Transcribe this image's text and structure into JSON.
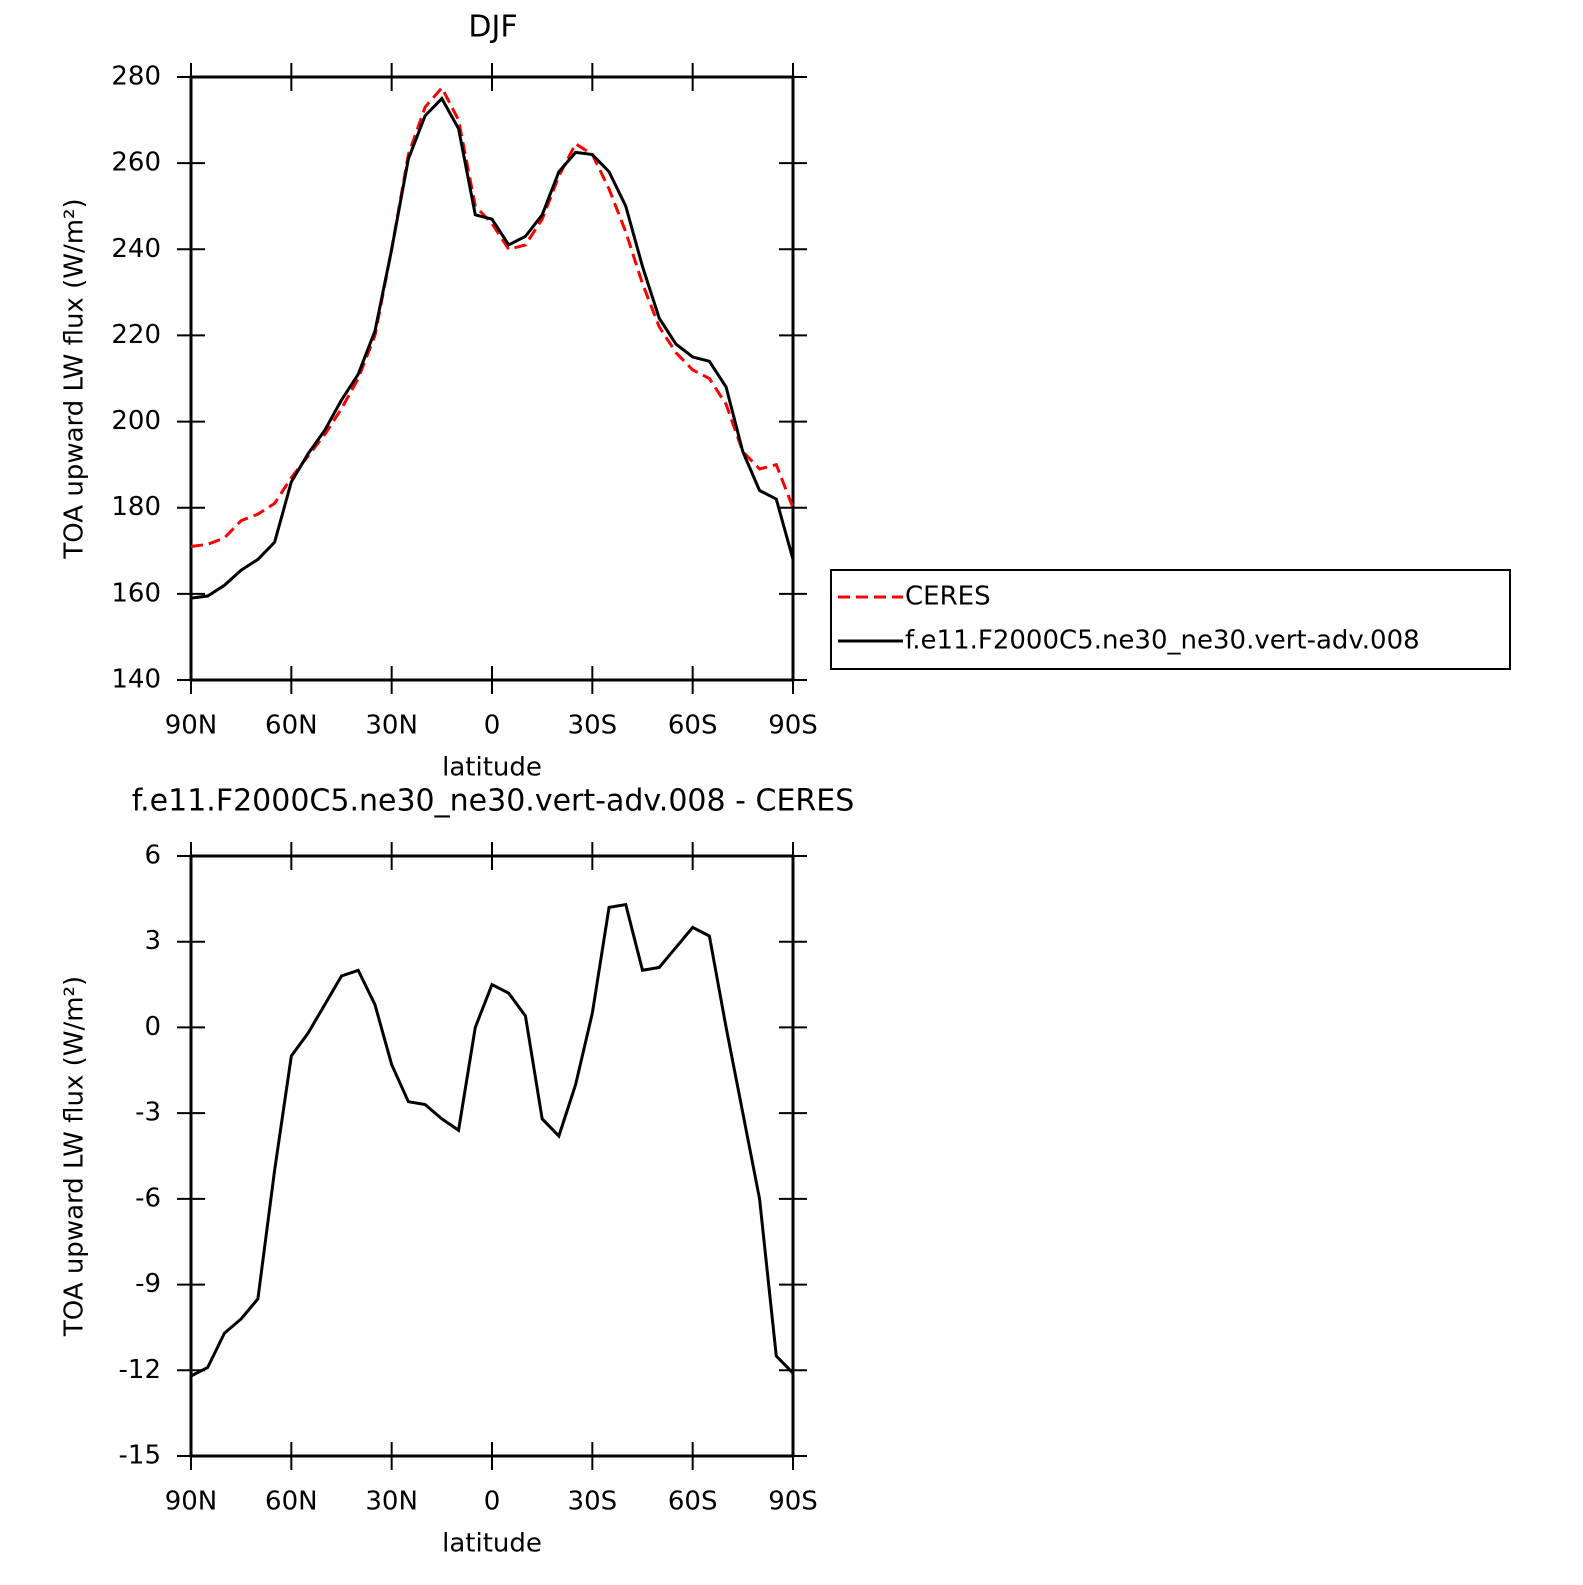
{
  "chart_data": [
    {
      "type": "line",
      "title": "DJF",
      "xlabel": "latitude",
      "ylabel": "TOA upward LW flux (W/m²)",
      "x": [
        90,
        85,
        80,
        75,
        70,
        65,
        60,
        55,
        50,
        45,
        40,
        35,
        30,
        25,
        20,
        15,
        10,
        5,
        0,
        -5,
        -10,
        -15,
        -20,
        -25,
        -30,
        -35,
        -40,
        -45,
        -50,
        -55,
        -60,
        -65,
        -70,
        -75,
        -80,
        -85,
        -90
      ],
      "series": [
        {
          "name": "CERES",
          "color": "#ff0000",
          "line_style": "dashed",
          "values": [
            171,
            171.5,
            173,
            177,
            178.5,
            181,
            187,
            192,
            197,
            203,
            210,
            220,
            240,
            262,
            273,
            277.5,
            270,
            250,
            246,
            240,
            241,
            247,
            257,
            264.5,
            262,
            254,
            244,
            232,
            222,
            216,
            212,
            210,
            204,
            193,
            189,
            190,
            180
          ]
        },
        {
          "name": "f.e11.F2000C5.ne30_ne30.vert-adv.008",
          "color": "#000000",
          "line_style": "solid",
          "values": [
            159,
            159.5,
            162,
            165.5,
            168,
            172,
            186,
            192.5,
            198,
            205,
            211,
            221,
            240,
            261,
            271,
            275,
            268,
            248,
            247,
            241,
            243,
            248,
            258,
            262.5,
            262,
            258,
            250,
            236,
            224,
            218,
            215,
            214,
            208,
            193,
            184,
            182,
            168
          ]
        }
      ],
      "xlim": [
        90,
        -90
      ],
      "xticks": [
        {
          "value": 90,
          "label": "90N"
        },
        {
          "value": 60,
          "label": "60N"
        },
        {
          "value": 30,
          "label": "30N"
        },
        0,
        {
          "value": -30,
          "label": "30S"
        },
        {
          "value": -60,
          "label": "60S"
        },
        {
          "value": -90,
          "label": "90S"
        }
      ],
      "ylim": [
        140,
        280
      ],
      "yticks": [
        140,
        160,
        180,
        200,
        220,
        240,
        260,
        280
      ],
      "legend": "right"
    },
    {
      "type": "line",
      "title": "f.e11.F2000C5.ne30_ne30.vert-adv.008 - CERES",
      "xlabel": "latitude",
      "ylabel": "TOA upward LW flux (W/m²)",
      "x": [
        90,
        85,
        80,
        75,
        70,
        65,
        60,
        55,
        50,
        45,
        40,
        35,
        30,
        25,
        20,
        15,
        10,
        5,
        0,
        -5,
        -10,
        -15,
        -20,
        -25,
        -30,
        -35,
        -40,
        -45,
        -50,
        -55,
        -60,
        -65,
        -70,
        -75,
        -80,
        -85,
        -90
      ],
      "values": [
        -12.2,
        -11.9,
        -10.7,
        -10.2,
        -9.5,
        -5,
        -1,
        -0.2,
        0.8,
        1.8,
        2,
        0.8,
        -1.3,
        -2.6,
        -2.7,
        -3.2,
        -3.6,
        0,
        1.5,
        1.2,
        0.4,
        -3.2,
        -3.8,
        -2,
        0.5,
        4.2,
        4.3,
        2,
        2.1,
        2.8,
        3.5,
        3.2,
        0,
        -3,
        -6,
        -11.5,
        -12.1
      ],
      "color": "#000000",
      "xlim": [
        90,
        -90
      ],
      "xticks": [
        {
          "value": 90,
          "label": "90N"
        },
        {
          "value": 60,
          "label": "60N"
        },
        {
          "value": 30,
          "label": "30N"
        },
        0,
        {
          "value": -30,
          "label": "30S"
        },
        {
          "value": -60,
          "label": "60S"
        },
        {
          "value": -90,
          "label": "90S"
        }
      ],
      "ylim": [
        -15,
        6
      ],
      "yticks": [
        -15,
        -12,
        -9,
        -6,
        -3,
        0,
        3,
        6
      ]
    }
  ]
}
